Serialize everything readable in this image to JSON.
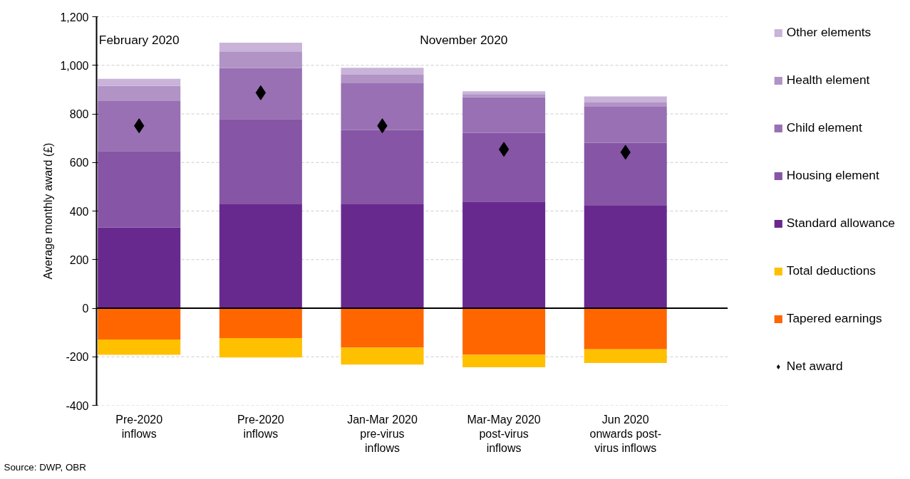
{
  "chart_data": {
    "type": "bar",
    "stacked": true,
    "ylabel": "Average monthly award (£)",
    "categories": [
      "Pre-2020 inflows",
      "Pre-2020 inflows",
      "Jan-Mar 2020 pre-virus inflows",
      "Mar-May 2020 post-virus inflows",
      "Jun 2020 onwards post-virus inflows"
    ],
    "series": [
      {
        "name": "Standard allowance",
        "color": "#68298f",
        "values": [
          332,
          428,
          428,
          439,
          422
        ]
      },
      {
        "name": "Housing element",
        "color": "#8655a5",
        "values": [
          315,
          351,
          305,
          283,
          259
        ]
      },
      {
        "name": "Child element",
        "color": "#9870b3",
        "values": [
          206,
          210,
          193,
          147,
          148
        ]
      },
      {
        "name": "Health element",
        "color": "#b193c6",
        "values": [
          62,
          68,
          35,
          12,
          18
        ]
      },
      {
        "name": "Other elements",
        "color": "#c9b3d9",
        "values": [
          29,
          36,
          29,
          12,
          25
        ]
      },
      {
        "name": "Tapered earnings",
        "color": "#ff6600",
        "values": [
          -129,
          -123,
          -163,
          -192,
          -169
        ]
      },
      {
        "name": "Total deductions",
        "color": "#ffc000",
        "values": [
          -63,
          -80,
          -69,
          -51,
          -57
        ]
      },
      {
        "name": "Net award",
        "type": "scatter",
        "color": "#000000",
        "values": [
          751,
          887,
          751,
          654,
          642
        ]
      }
    ],
    "marker": "diamond",
    "ylim": [
      -400,
      1200
    ],
    "yticks": [
      -400,
      -200,
      0,
      200,
      400,
      600,
      800,
      {
        "value": 1000,
        "label": "1,000"
      },
      {
        "value": 1200,
        "label": "1,200"
      }
    ],
    "grid": "y",
    "legend": "right",
    "annotations": [
      "February 2020",
      "November 2020",
      "Source: DWP, OBR"
    ]
  }
}
